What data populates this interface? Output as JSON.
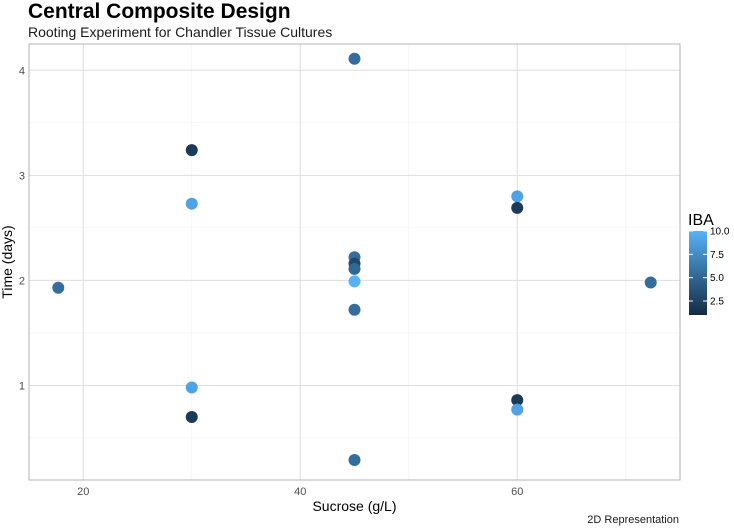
{
  "chart_data": {
    "type": "scatter",
    "title": "Central Composite Design",
    "subtitle": "Rooting Experiment for Chandler Tissue Cultures",
    "caption": "2D Representation",
    "xlabel": "Sucrose (g/L)",
    "ylabel": "Time (days)",
    "xlim": [
      15,
      75
    ],
    "ylim": [
      0.1,
      4.25
    ],
    "xticks": [
      20,
      40,
      60
    ],
    "yticks": [
      1,
      2,
      3,
      4
    ],
    "grid": true,
    "color_scale": {
      "title": "IBA",
      "range": [
        1,
        10
      ],
      "ticks": [
        2.5,
        5.0,
        7.5,
        10.0
      ],
      "tick_labels": [
        "2.5",
        "5.0",
        "7.5",
        "10.0"
      ],
      "low_color": "#132B43",
      "high_color": "#56B1F7"
    },
    "legend_position": "right",
    "points": [
      {
        "x": 17.7,
        "y": 1.93,
        "iba": 5.5
      },
      {
        "x": 30,
        "y": 3.24,
        "iba": 2.0
      },
      {
        "x": 30,
        "y": 2.73,
        "iba": 9.0
      },
      {
        "x": 30,
        "y": 0.98,
        "iba": 9.0
      },
      {
        "x": 30,
        "y": 0.7,
        "iba": 2.0
      },
      {
        "x": 45,
        "y": 4.11,
        "iba": 5.5
      },
      {
        "x": 45,
        "y": 2.22,
        "iba": 5.5
      },
      {
        "x": 45,
        "y": 2.16,
        "iba": 3.0
      },
      {
        "x": 45,
        "y": 2.11,
        "iba": 5.0
      },
      {
        "x": 45,
        "y": 1.99,
        "iba": 10.0
      },
      {
        "x": 45,
        "y": 1.72,
        "iba": 5.5
      },
      {
        "x": 45,
        "y": 0.29,
        "iba": 5.5
      },
      {
        "x": 60,
        "y": 2.8,
        "iba": 9.0
      },
      {
        "x": 60,
        "y": 2.69,
        "iba": 2.0
      },
      {
        "x": 60,
        "y": 0.86,
        "iba": 2.0
      },
      {
        "x": 60,
        "y": 0.77,
        "iba": 9.0
      },
      {
        "x": 72.3,
        "y": 1.98,
        "iba": 5.5
      }
    ]
  }
}
